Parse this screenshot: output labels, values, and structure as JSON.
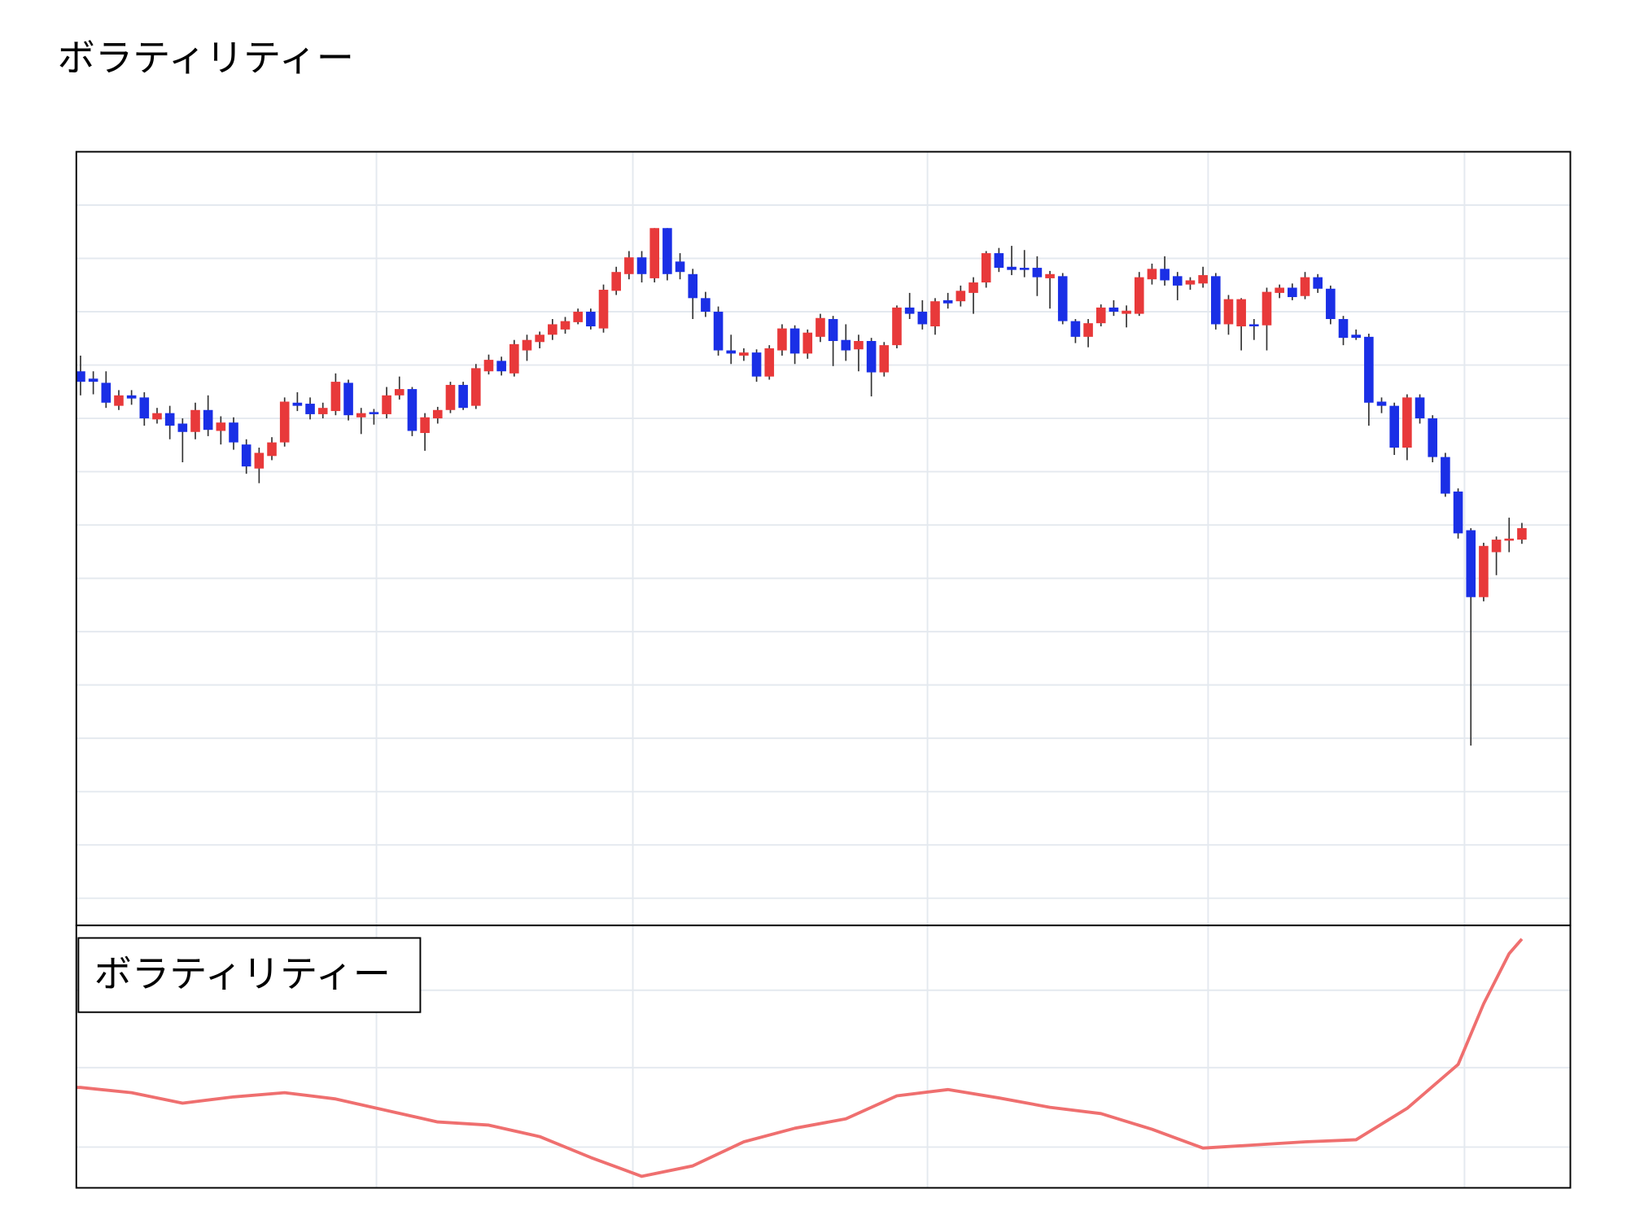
{
  "title": "ボラティリティー",
  "chart_data": [
    {
      "type": "candlestick",
      "grid": true,
      "up_color": "#e8393a",
      "down_color": "#1a2fe6",
      "wick_color": "#333333",
      "xlim": [
        -0.33,
        116.8
      ],
      "xticks": [
        23.2,
        43.3,
        66.4,
        88.4,
        108.5
      ],
      "ylim": [
        0,
        740
      ],
      "yticks": [
        26,
        77,
        128,
        179,
        230,
        281,
        332,
        383,
        434,
        485,
        536,
        587,
        638,
        689
      ],
      "open": [
        530,
        523,
        519,
        497,
        507,
        505,
        484,
        490,
        480,
        472,
        493,
        473,
        481,
        460,
        437,
        449,
        462,
        500,
        499,
        489,
        492,
        519,
        486,
        491,
        489,
        507,
        513,
        471,
        485,
        493,
        517,
        497,
        530,
        540,
        528,
        550,
        558,
        565,
        570,
        577,
        587,
        571,
        607,
        623,
        639,
        619,
        667,
        635,
        623,
        600,
        587,
        550,
        545,
        548,
        525,
        550,
        571,
        547,
        563,
        580,
        560,
        551,
        559,
        529,
        555,
        591,
        587,
        573,
        598,
        597,
        605,
        615,
        643,
        630,
        629,
        629,
        619,
        621,
        578,
        563,
        576,
        591,
        585,
        585,
        618,
        628,
        621,
        613,
        614,
        621,
        575,
        573,
        575,
        574,
        605,
        610,
        602,
        620,
        609,
        580,
        565,
        563,
        501,
        497,
        457,
        505,
        485,
        448,
        415,
        378,
        314,
        357,
        368,
        369
      ],
      "high": [
        545,
        530,
        530,
        512,
        512,
        510,
        495,
        497,
        485,
        500,
        507,
        487,
        486,
        465,
        457,
        467,
        505,
        510,
        505,
        500,
        528,
        522,
        495,
        494,
        515,
        525,
        515,
        490,
        496,
        520,
        520,
        537,
        546,
        544,
        560,
        565,
        568,
        580,
        582,
        590,
        590,
        613,
        630,
        645,
        645,
        667,
        667,
        643,
        628,
        606,
        592,
        565,
        552,
        551,
        555,
        575,
        574,
        570,
        585,
        583,
        575,
        565,
        562,
        558,
        593,
        605,
        598,
        600,
        605,
        612,
        620,
        645,
        648,
        650,
        646,
        640,
        626,
        624,
        580,
        580,
        594,
        598,
        593,
        625,
        633,
        640,
        625,
        620,
        630,
        624,
        603,
        600,
        580,
        610,
        613,
        614,
        625,
        623,
        612,
        583,
        570,
        566,
        505,
        500,
        508,
        508,
        488,
        452,
        418,
        380,
        366,
        372,
        390,
        385
      ],
      "low": [
        507,
        508,
        495,
        493,
        498,
        478,
        480,
        465,
        443,
        465,
        468,
        460,
        455,
        432,
        423,
        445,
        458,
        492,
        484,
        485,
        488,
        483,
        470,
        479,
        485,
        503,
        468,
        454,
        480,
        490,
        493,
        494,
        527,
        526,
        525,
        540,
        552,
        560,
        566,
        575,
        570,
        567,
        603,
        618,
        615,
        615,
        617,
        618,
        580,
        582,
        545,
        537,
        540,
        520,
        522,
        545,
        537,
        542,
        558,
        535,
        540,
        530,
        506,
        525,
        552,
        580,
        570,
        565,
        590,
        592,
        585,
        610,
        625,
        622,
        620,
        602,
        590,
        575,
        557,
        553,
        573,
        583,
        572,
        583,
        613,
        612,
        598,
        608,
        610,
        570,
        565,
        550,
        560,
        550,
        600,
        598,
        599,
        605,
        575,
        555,
        560,
        478,
        490,
        450,
        445,
        480,
        443,
        410,
        370,
        172,
        310,
        335,
        357,
        365
      ],
      "close": [
        520,
        520,
        500,
        507,
        504,
        485,
        490,
        478,
        472,
        493,
        474,
        481,
        462,
        439,
        452,
        462,
        501,
        497,
        489,
        495,
        520,
        488,
        490,
        489,
        507,
        513,
        473,
        486,
        493,
        517,
        495,
        533,
        541,
        530,
        556,
        560,
        565,
        575,
        578,
        587,
        573,
        608,
        625,
        639,
        623,
        667,
        623,
        625,
        600,
        587,
        550,
        547,
        548,
        525,
        552,
        571,
        547,
        567,
        581,
        559,
        550,
        559,
        529,
        555,
        591,
        585,
        575,
        597,
        595,
        607,
        615,
        643,
        629,
        627,
        627,
        620,
        623,
        578,
        563,
        576,
        591,
        587,
        588,
        620,
        628,
        617,
        612,
        617,
        622,
        575,
        599,
        599,
        573,
        606,
        610,
        601,
        620,
        609,
        580,
        562,
        562,
        500,
        497,
        457,
        505,
        485,
        448,
        413,
        375,
        314,
        363,
        369,
        370,
        380
      ]
    },
    {
      "type": "line",
      "label": "ボラティリティー",
      "grid": true,
      "xlim": [
        -0.33,
        116.8
      ],
      "xticks": [
        23.2,
        43.3,
        66.4,
        88.4,
        108.5
      ],
      "ylim": [
        0,
        251
      ],
      "yticks": [
        39,
        115,
        189
      ],
      "x": [
        -0.33,
        0,
        4,
        8,
        12,
        16,
        20,
        24,
        28,
        32,
        36,
        40,
        44,
        48,
        52,
        56,
        60,
        64,
        68,
        72,
        76,
        80,
        84,
        88,
        92,
        96,
        100,
        104,
        108,
        110,
        112,
        113
      ],
      "series": [
        {
          "color": "#ef6f6f",
          "values": [
            96,
            96,
            91,
            81,
            87,
            91,
            85,
            74,
            63,
            60,
            49,
            29,
            11,
            21,
            44,
            57,
            66,
            88,
            94,
            86,
            77,
            71,
            56,
            38,
            41,
            44,
            46,
            76,
            118,
            176,
            224,
            238
          ]
        }
      ]
    }
  ]
}
